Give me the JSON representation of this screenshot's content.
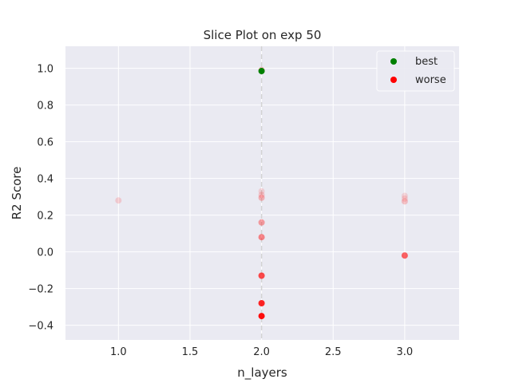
{
  "chart_data": {
    "type": "scatter",
    "title": "Slice Plot on exp 50",
    "xlabel": "n_layers",
    "ylabel": "R2 Score",
    "xlim": [
      0.63,
      3.38
    ],
    "ylim": [
      -0.48,
      1.12
    ],
    "xticks": [
      "1.0",
      "1.5",
      "2.0",
      "2.5",
      "3.0"
    ],
    "xtick_values": [
      1.0,
      1.5,
      2.0,
      2.5,
      3.0
    ],
    "yticks": [
      "−0.4",
      "−0.2",
      "0.0",
      "0.2",
      "0.4",
      "0.6",
      "0.8",
      "1.0"
    ],
    "ytick_values": [
      -0.4,
      -0.2,
      0.0,
      0.2,
      0.4,
      0.6,
      0.8,
      1.0
    ],
    "grid": true,
    "legend_position": "top-right",
    "best_x": 2.0,
    "colors": {
      "background": "#eaeaf2",
      "grid": "#ffffff",
      "best": "#008000",
      "worse": "#ff0000",
      "best_line": "#d3d3d3"
    },
    "series": [
      {
        "name": "best",
        "color": "#008000",
        "points": [
          {
            "x": 2.0,
            "y": 0.985,
            "alpha": 1.0
          }
        ]
      },
      {
        "name": "worse",
        "color": "#ff0000",
        "points": [
          {
            "x": 2.0,
            "y": 0.99,
            "alpha": 0.25
          },
          {
            "x": 2.0,
            "y": 0.33,
            "alpha": 0.12
          },
          {
            "x": 2.0,
            "y": 0.31,
            "alpha": 0.15
          },
          {
            "x": 2.0,
            "y": 0.295,
            "alpha": 0.25
          },
          {
            "x": 2.0,
            "y": 0.16,
            "alpha": 0.35
          },
          {
            "x": 2.0,
            "y": 0.08,
            "alpha": 0.45
          },
          {
            "x": 2.0,
            "y": -0.13,
            "alpha": 0.7
          },
          {
            "x": 2.0,
            "y": -0.28,
            "alpha": 0.85
          },
          {
            "x": 2.0,
            "y": -0.35,
            "alpha": 0.95
          },
          {
            "x": 1.0,
            "y": 0.28,
            "alpha": 0.15
          },
          {
            "x": 3.0,
            "y": 0.305,
            "alpha": 0.12
          },
          {
            "x": 3.0,
            "y": 0.29,
            "alpha": 0.12
          },
          {
            "x": 3.0,
            "y": 0.275,
            "alpha": 0.2
          },
          {
            "x": 3.0,
            "y": -0.02,
            "alpha": 0.6
          }
        ]
      }
    ]
  }
}
